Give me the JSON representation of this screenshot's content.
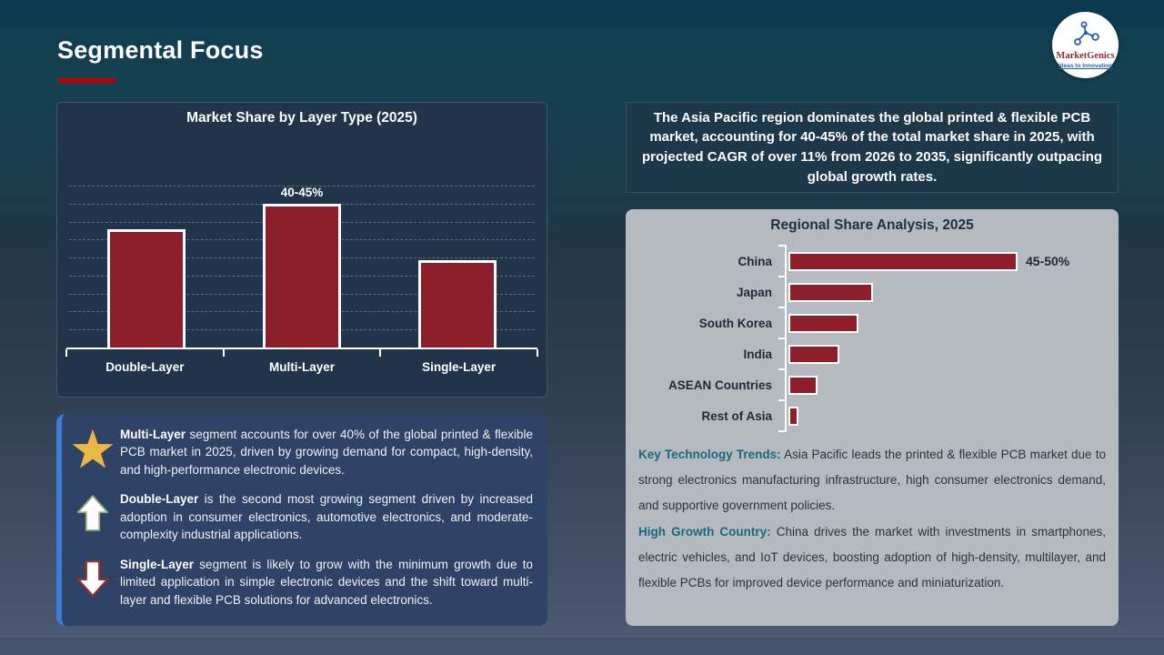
{
  "header": {
    "title": "Segmental Focus"
  },
  "logo": {
    "brand": "MarketGenics",
    "tagline": "Ideas to Innovation"
  },
  "chart_data": [
    {
      "type": "bar",
      "title": "Market Share by Layer Type (2025)",
      "categories": [
        "Double-Layer",
        "Multi-Layer",
        "Single-Layer"
      ],
      "values": [
        35,
        42.5,
        26
      ],
      "data_labels": [
        "",
        "40-45%",
        ""
      ],
      "ylabel": "",
      "xlabel": "",
      "ylim": [
        0,
        48
      ],
      "grid": "horizontal-dashed",
      "legend": "none",
      "bar_color": "#8c1f2a"
    },
    {
      "type": "bar-horizontal",
      "title": "Regional Share Analysis, 2025",
      "categories": [
        "China",
        "Japan",
        "South Korea",
        "India",
        "ASEAN Countries",
        "Rest of Asia"
      ],
      "values": [
        47.5,
        17.5,
        14.5,
        10.5,
        6,
        2
      ],
      "data_labels": [
        "45-50%",
        "",
        "",
        "",
        "",
        ""
      ],
      "ylabel": "",
      "xlabel": "",
      "xlim": [
        0,
        60
      ],
      "grid": "off",
      "legend": "none",
      "bar_color": "#8c1f2a"
    }
  ],
  "banner": {
    "text": "The Asia Pacific region dominates the global printed & flexible PCB market, accounting for 40-45% of the total market share in 2025, with projected CAGR of over 11% from 2026 to 2035, significantly outpacing global growth rates."
  },
  "insights": [
    {
      "icon": "star-icon",
      "lead": "Multi-Layer",
      "text": " segment accounts for over 40% of the global printed & flexible PCB market in 2025, driven by growing demand for compact, high-density, and high-performance electronic devices."
    },
    {
      "icon": "up-arrow-icon",
      "lead": "Double-Layer",
      "text": " is the second most growing segment driven by increased adoption in consumer electronics, automotive electronics, and moderate-complexity industrial applications."
    },
    {
      "icon": "down-arrow-icon",
      "lead": "Single-Layer",
      "text": " segment is likely to grow with the minimum growth due to limited application in simple electronic devices and the shift toward multi-layer and flexible PCB solutions for advanced electronics."
    }
  ],
  "regional_notes": [
    {
      "lead": "Key Technology Trends:",
      "text": " Asia Pacific leads the printed & flexible PCB market due to strong electronics manufacturing infrastructure, high consumer electronics demand, and supportive government policies."
    },
    {
      "lead": "High Growth Country:",
      "text": " China drives the market with investments in smartphones, electric vehicles, and IoT devices, boosting adoption of high-density, multilayer, and flexible PCBs for improved device performance and miniaturization."
    }
  ],
  "colors": {
    "bar_red": "#8c1f2a",
    "title_underline_red": "#c00000",
    "insight_accent_blue": "#3d7bd9",
    "star_gold": "#ecb845",
    "note_lead_teal": "#19697c",
    "panel_navy": "#22344a",
    "banner_navy": "#1d3848",
    "insight_navy": "#2f4366",
    "regional_panel_gray": "#b5bac0"
  }
}
